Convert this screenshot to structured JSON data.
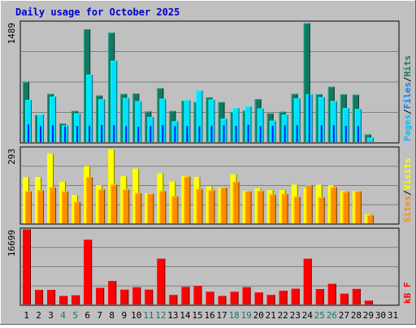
{
  "chart_data": {
    "type": "bar",
    "title": "Daily usage for October 2025",
    "categories": [
      "1",
      "2",
      "3",
      "4",
      "5",
      "6",
      "7",
      "8",
      "9",
      "10",
      "11",
      "12",
      "13",
      "14",
      "15",
      "16",
      "17",
      "18",
      "19",
      "20",
      "21",
      "22",
      "23",
      "24",
      "25",
      "26",
      "27",
      "28",
      "29",
      "30",
      "31"
    ],
    "weekend_days": [
      "4",
      "5",
      "11",
      "12",
      "18",
      "19",
      "25",
      "26"
    ],
    "panels": [
      {
        "id": "hits-files-pages",
        "ymax_label": "1489",
        "ymax": 1489,
        "series": [
          {
            "name": "Hits",
            "color": "#137962",
            "values": [
              746,
              334,
              596,
              229,
              385,
              1398,
              578,
              1355,
              596,
              601,
              379,
              668,
              385,
              512,
              495,
              554,
              495,
              374,
              389,
              532,
              356,
              375,
              598,
              1472,
              592,
              685,
              592,
              587,
              94,
              0,
              0
            ]
          },
          {
            "name": "Files",
            "color": "#00E0FF",
            "values": [
              522,
              341,
              564,
              207,
              356,
              836,
              531,
              1008,
              546,
              506,
              311,
              537,
              258,
              519,
              637,
              527,
              291,
              422,
              441,
              417,
              266,
              340,
              541,
              592,
              557,
              509,
              422,
              410,
              56,
              0,
              0
            ]
          },
          {
            "name": "Pages",
            "color": "#0020FF",
            "values": [
              220,
              198,
              206,
              193,
              201,
              204,
              212,
              208,
              198,
              191,
              200,
              211,
              198,
              201,
              197,
              204,
              209,
              201,
              214,
              198,
              203,
              206,
              210,
              589,
              207,
              208,
              202,
              200,
              2,
              0,
              0
            ]
          }
        ],
        "legend": [
          "Pages",
          "/",
          "Files",
          "/",
          "Hits"
        ],
        "legend_colors": [
          "#00C0FF",
          "#000000",
          "#0080FF",
          "#000000",
          "#137962"
        ]
      },
      {
        "id": "visits-sites",
        "ymax_label": "293",
        "ymax": 293,
        "series": [
          {
            "name": "Visits",
            "color": "#FFFF00",
            "values": [
              179,
              179,
              270,
              161,
              109,
              221,
              147,
              287,
              182,
              212,
              116,
              194,
              161,
              183,
              179,
              143,
              139,
              190,
              126,
              135,
              128,
              129,
              150,
              137,
              149,
              147,
              125,
              125,
              35,
              0,
              0
            ]
          },
          {
            "name": "Sites",
            "color": "#FF8C00",
            "values": [
              124,
              128,
              140,
              124,
              83,
              179,
              131,
              150,
              131,
              117,
              115,
              125,
              105,
              181,
              133,
              128,
              138,
              161,
              124,
              125,
              112,
              114,
              103,
              147,
              101,
              140,
              122,
              124,
              32,
              0,
              0
            ]
          }
        ],
        "legend": [
          "Sites",
          "/",
          "Visits"
        ],
        "legend_colors": [
          "#FF8C00",
          "#000000",
          "#FFFF00"
        ]
      },
      {
        "id": "kbytes",
        "ymax_label": "16699",
        "ymax": 16699,
        "series": [
          {
            "name": "kB F",
            "color": "#FF0000",
            "values": [
              16600,
              3210,
              3210,
              1880,
              2010,
              14300,
              3660,
              5170,
              3260,
              3790,
              3260,
              10100,
              2090,
              3880,
              4060,
              2800,
              1880,
              2800,
              3810,
              2640,
              2090,
              3010,
              3460,
              10100,
              3410,
              4550,
              2370,
              3430,
              830,
              0,
              0
            ]
          }
        ],
        "legend": [
          "kB F"
        ],
        "legend_colors": [
          "#FF0000"
        ]
      }
    ]
  }
}
